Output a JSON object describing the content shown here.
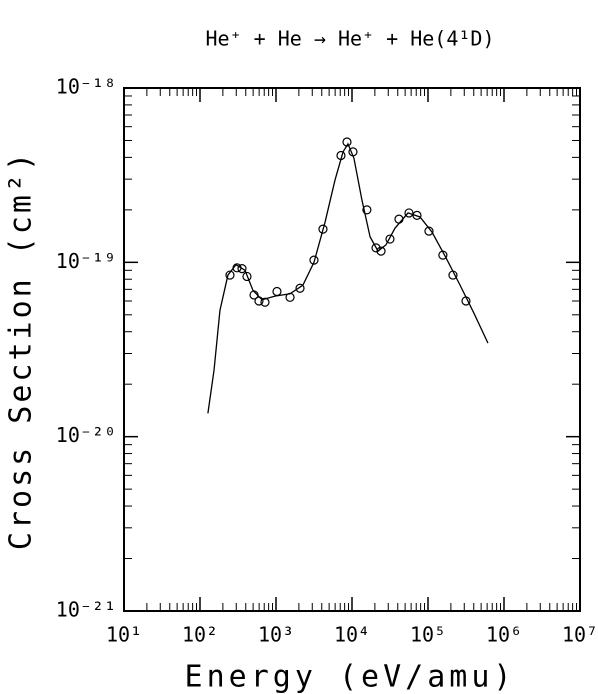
{
  "chart_data": {
    "type": "scatter",
    "title": "He⁺ + He → He⁺ + He(4¹D)",
    "x_label": "Energy (eV/amu)",
    "y_label": "Cross Section (cm²)",
    "log_x": true,
    "log_y": true,
    "xlim": [
      10,
      10000000
    ],
    "ylim": [
      1e-21,
      1e-18
    ],
    "xticks": [
      {
        "value": 10,
        "label": "10¹"
      },
      {
        "value": 100,
        "label": "10²"
      },
      {
        "value": 1000,
        "label": "10³"
      },
      {
        "value": 10000,
        "label": "10⁴"
      },
      {
        "value": 100000,
        "label": "10⁵"
      },
      {
        "value": 1000000,
        "label": "10⁶"
      },
      {
        "value": 10000000,
        "label": "10⁷"
      }
    ],
    "yticks": [
      {
        "value": 1e-21,
        "label": "10⁻²¹"
      },
      {
        "value": 1e-20,
        "label": "10⁻²⁰"
      },
      {
        "value": 1e-19,
        "label": "10⁻¹⁹"
      },
      {
        "value": 1e-18,
        "label": "10⁻¹⁸"
      }
    ],
    "series": [
      {
        "kind": "points",
        "color": "#000000",
        "x": [
          248,
          307,
          357,
          415,
          514,
          597,
          716,
          1030,
          1530,
          2070,
          3160,
          4150,
          7160,
          8590,
          10300,
          15700,
          20700,
          24100,
          31600,
          41500,
          56200,
          71600,
          103000,
          157000,
          213000,
          316000
        ],
        "values": [
          8.45e-20,
          9.3e-20,
          9.2e-20,
          8.3e-20,
          6.5e-20,
          6e-20,
          5.9e-20,
          6.8e-20,
          6.3e-20,
          7.1e-20,
          1.03e-19,
          1.55e-19,
          4.1e-19,
          4.9e-19,
          4.3e-19,
          2e-19,
          1.21e-19,
          1.16e-19,
          1.36e-19,
          1.77e-19,
          1.92e-19,
          1.86e-19,
          1.51e-19,
          1.1e-19,
          8.45e-20,
          6e-20
        ]
      },
      {
        "kind": "line",
        "color": "#000000",
        "x": [
          127,
          153,
          183,
          233,
          298,
          391,
          498,
          655,
          970,
          1530,
          2260,
          3160,
          4420,
          5970,
          7620,
          8850,
          10600,
          13500,
          17300,
          22000,
          28000,
          36800,
          54600,
          78500,
          113000,
          173000,
          264000,
          403000,
          615000
        ],
        "values": [
          1.36e-20,
          2.41e-20,
          5.3e-20,
          8.45e-20,
          9.7e-20,
          9e-20,
          6.9e-20,
          6.1e-20,
          6.4e-20,
          6.6e-20,
          7.4e-20,
          1e-19,
          1.7e-19,
          2.96e-19,
          4.3e-19,
          4.78e-19,
          3.96e-19,
          2.28e-19,
          1.4e-19,
          1.16e-19,
          1.26e-19,
          1.57e-19,
          1.92e-19,
          1.82e-19,
          1.49e-19,
          1.06e-19,
          7.4e-20,
          5.1e-20,
          3.44e-20
        ]
      }
    ]
  }
}
